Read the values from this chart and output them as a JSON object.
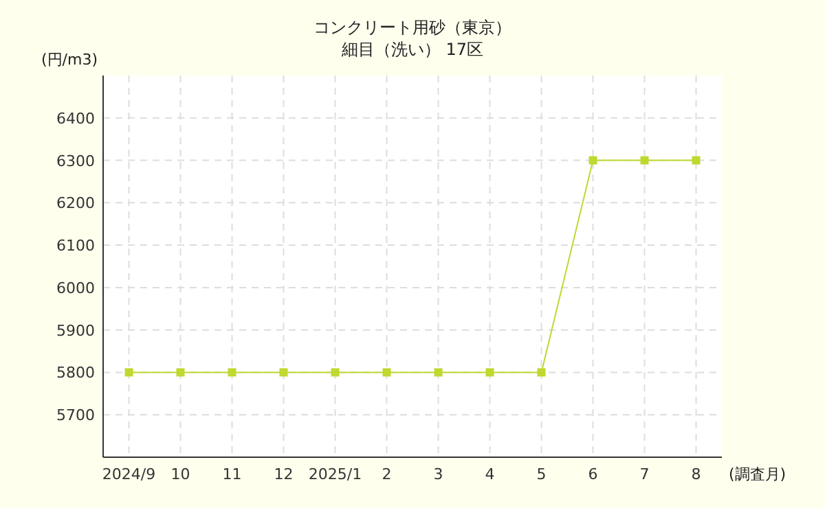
{
  "chart_data": {
    "type": "line",
    "title": "コンクリート用砂（東京）",
    "subtitle": "細目（洗い） 17区",
    "ylabel": "(円/m3)",
    "xlabel": "(調査月)",
    "categories": [
      "2024/9",
      "10",
      "11",
      "12",
      "2025/1",
      "2",
      "3",
      "4",
      "5",
      "6",
      "7",
      "8"
    ],
    "series": [
      {
        "color": "#c0d830",
        "values": [
          5800,
          5800,
          5800,
          5800,
          5800,
          5800,
          5800,
          5800,
          5800,
          6300,
          6300,
          6300
        ]
      }
    ],
    "ylim": [
      5600,
      6500
    ],
    "yticks": [
      5700,
      5800,
      5900,
      6000,
      6100,
      6200,
      6300,
      6400
    ],
    "grid": true,
    "marker": "square",
    "line_style": "solid"
  }
}
